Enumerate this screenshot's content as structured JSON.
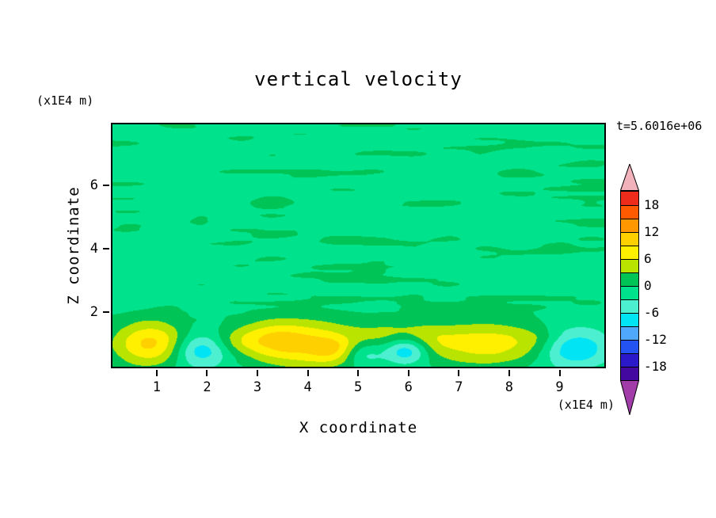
{
  "title": "vertical velocity",
  "timestamp_label": "t=5.6016e+06",
  "axes": {
    "x_label": "X coordinate",
    "x_units": "(x1E4 m)",
    "z_label": "Z coordinate",
    "z_units": "(x1E4 m)",
    "x_ticks": [
      1,
      2,
      3,
      4,
      5,
      6,
      7,
      8,
      9
    ],
    "z_ticks": [
      2,
      4,
      6
    ]
  },
  "colorbar": {
    "tick_labels": [
      "18",
      "12",
      "6",
      "0",
      "-6",
      "-12",
      "-18"
    ],
    "over_color": "#F2B2BC",
    "under_color": "#A13CA8"
  },
  "chart_data": {
    "type": "heatmap",
    "subtype": "filled-contour",
    "title": "vertical velocity",
    "xlabel": "X coordinate (x1E4 m)",
    "ylabel": "Z coordinate (x1E4 m)",
    "time_label": "t=5.6016e+06",
    "xlim": [
      0.09,
      9.92
    ],
    "zlim": [
      0.22,
      7.98
    ],
    "contour_interval": 3,
    "levels": [
      -21,
      -18,
      -15,
      -12,
      -9,
      -6,
      -3,
      0,
      3,
      6,
      9,
      12,
      15,
      18,
      21
    ],
    "band_colors_low_to_high": [
      "#4308A0",
      "#2B18C8",
      "#2353F0",
      "#4FA8FC",
      "#00E4F4",
      "#4CEFD0",
      "#00E38C",
      "#00C455",
      "#B8E400",
      "#FFF000",
      "#FFD000",
      "#FF9800",
      "#FF5A00",
      "#EE2C1C"
    ],
    "base_value": -1.0,
    "noise": {
      "sx": 0.62,
      "sz": 3.3,
      "amp_pos": 3.2,
      "amp_neg": 1.1,
      "fade_zlo": 1.7,
      "fade_zhi": 2.6
    },
    "blobs": [
      {
        "x": 0.9,
        "z": 1.0,
        "rx": 0.55,
        "rz": 0.5,
        "amp": 11
      },
      {
        "x": 1.85,
        "z": 0.8,
        "rx": 0.4,
        "rz": 0.38,
        "amp": -8.5
      },
      {
        "x": 2.55,
        "z": 1.1,
        "rx": 0.35,
        "rz": 0.3,
        "amp": 3.5
      },
      {
        "x": 3.25,
        "z": 1.15,
        "rx": 0.45,
        "rz": 0.4,
        "amp": 5
      },
      {
        "x": 3.95,
        "z": 1.0,
        "rx": 0.75,
        "rz": 0.55,
        "amp": 9.5
      },
      {
        "x": 4.55,
        "z": 0.8,
        "rx": 0.35,
        "rz": 0.3,
        "amp": 5
      },
      {
        "x": 5.1,
        "z": 0.7,
        "rx": 0.3,
        "rz": 0.28,
        "amp": -6.5
      },
      {
        "x": 5.6,
        "z": 1.15,
        "rx": 0.5,
        "rz": 0.45,
        "amp": 4.5
      },
      {
        "x": 5.95,
        "z": 0.8,
        "rx": 0.32,
        "rz": 0.3,
        "amp": -11
      },
      {
        "x": 6.4,
        "z": 1.1,
        "rx": 0.45,
        "rz": 0.4,
        "amp": 4.5
      },
      {
        "x": 7.55,
        "z": 1.0,
        "rx": 0.7,
        "rz": 0.5,
        "amp": 8.5
      },
      {
        "x": 8.6,
        "z": 1.05,
        "rx": 0.4,
        "rz": 0.35,
        "amp": 3.5
      },
      {
        "x": 9.25,
        "z": 0.85,
        "rx": 0.5,
        "rz": 0.42,
        "amp": -8.5
      }
    ]
  }
}
